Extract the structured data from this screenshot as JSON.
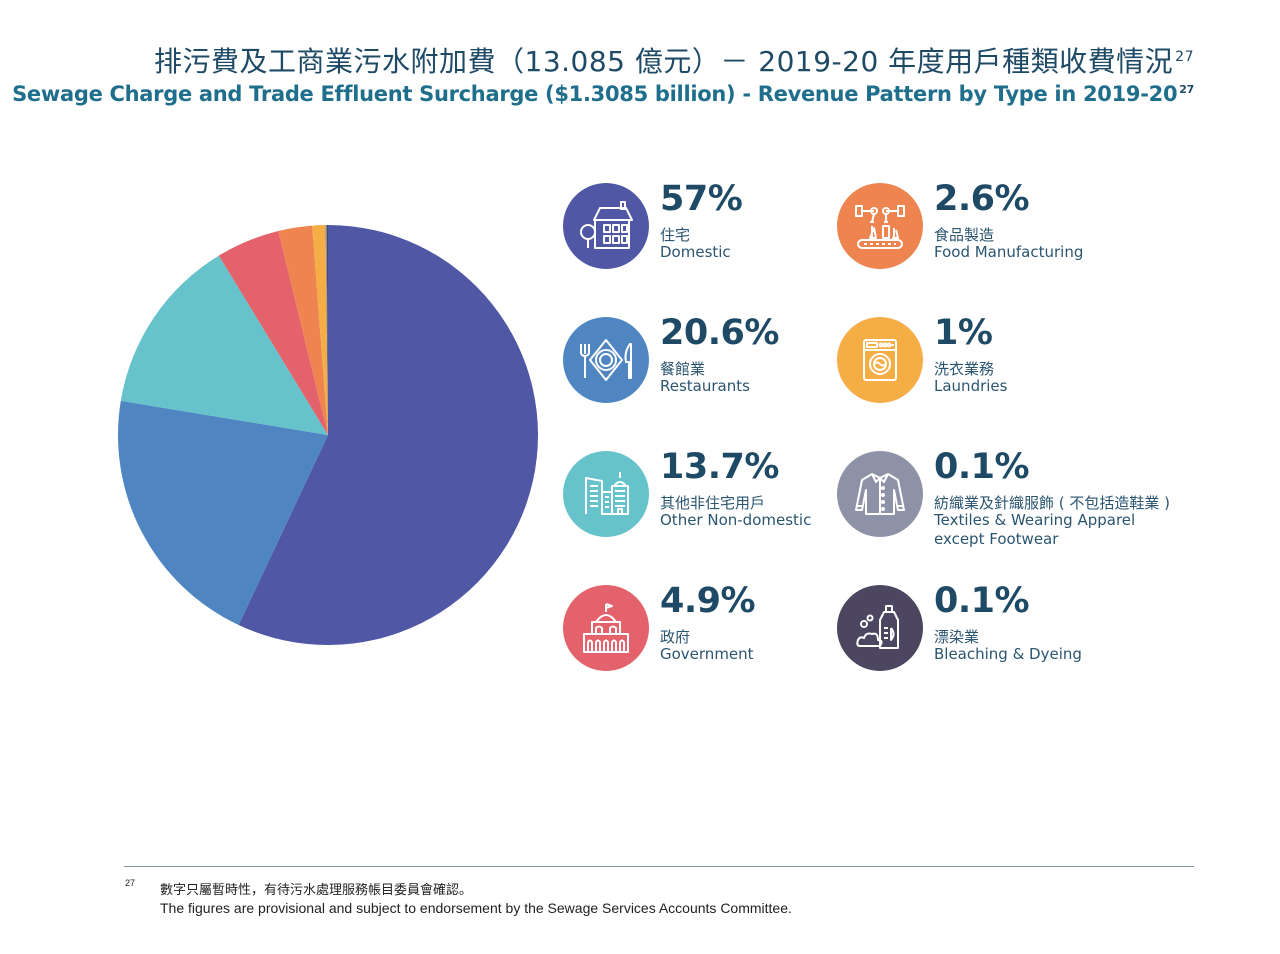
{
  "header": {
    "title_zh": "排污費及工商業污水附加費（13.085 億元）－ 2019-20 年度用戶種類收費情況",
    "title_en": "Sewage Charge and Trade Effluent Surcharge ($1.3085 billion) - Revenue Pattern by Type in 2019-20",
    "footnote_ref": "27"
  },
  "chart_data": {
    "type": "pie",
    "title": "Sewage Charge and Trade Effluent Surcharge ($1.3085 billion) - Revenue Pattern by Type in 2019-20",
    "start_angle": "12 o'clock",
    "direction": "clockwise",
    "unit": "%",
    "slices": [
      {
        "key": "domestic",
        "label_zh": "住宅",
        "label_en": "Domestic",
        "value": 57,
        "display": "57%",
        "color": "#5058a6",
        "icon": "house-icon"
      },
      {
        "key": "restaurants",
        "label_zh": "餐館業",
        "label_en": "Restaurants",
        "value": 20.6,
        "display": "20.6%",
        "color": "#4f86c1",
        "icon": "plate-cutlery-icon"
      },
      {
        "key": "other",
        "label_zh": "其他非住宅用戶",
        "label_en": "Other Non-domestic",
        "value": 13.7,
        "display": "13.7%",
        "color": "#66c2cb",
        "icon": "buildings-icon"
      },
      {
        "key": "government",
        "label_zh": "政府",
        "label_en": "Government",
        "value": 4.9,
        "display": "4.9%",
        "color": "#e3626b",
        "icon": "government-building-icon"
      },
      {
        "key": "food",
        "label_zh": "食品製造",
        "label_en": "Food Manufacturing",
        "value": 2.6,
        "display": "2.6%",
        "color": "#ee844f",
        "icon": "factory-robot-icon"
      },
      {
        "key": "laundries",
        "label_zh": "洗衣業務",
        "label_en": "Laundries",
        "value": 1,
        "display": "1%",
        "color": "#f5ae46",
        "icon": "washing-machine-icon"
      },
      {
        "key": "textiles",
        "label_zh": "紡織業及針織服飾 ( 不包括造鞋業 )",
        "label_en": "Textiles & Wearing Apparel",
        "label_en2": "except Footwear",
        "value": 0.1,
        "display": "0.1%",
        "color": "#8d92a6",
        "icon": "shirt-icon"
      },
      {
        "key": "bleaching",
        "label_zh": "漂染業",
        "label_en": "Bleaching & Dyeing",
        "value": 0.1,
        "display": "0.1%",
        "color": "#4c4661",
        "icon": "detergent-bottle-icon"
      }
    ]
  },
  "footnote": {
    "mark": "27",
    "text_zh": "數字只屬暫時性，有待污水處理服務帳目委員會確認。",
    "text_en": "The figures are provisional and subject to endorsement by the Sewage Services Accounts Committee."
  }
}
